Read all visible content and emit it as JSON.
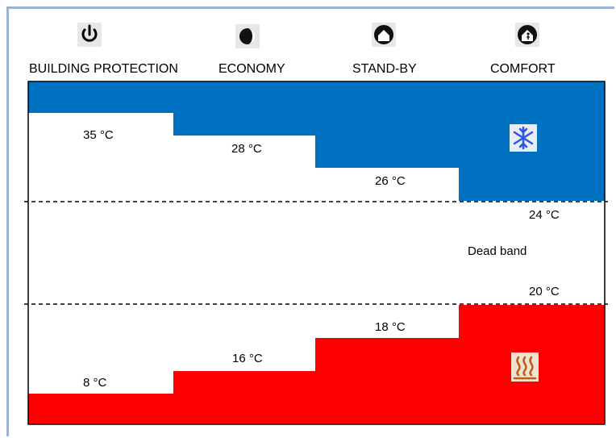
{
  "modes": [
    {
      "label": "BUILDING PROTECTION",
      "icon": "power-icon"
    },
    {
      "label": "ECONOMY",
      "icon": "moon-icon"
    },
    {
      "label": "STAND-BY",
      "icon": "house-icon"
    },
    {
      "label": "COMFORT",
      "icon": "house-person-icon"
    }
  ],
  "cooling_setpoints": [
    "35 °C",
    "28 °C",
    "26 °C"
  ],
  "heating_setpoints": [
    "8 °C",
    "16 °C",
    "18 °C"
  ],
  "dead_band": {
    "upper": "24 °C",
    "lower": "20 °C",
    "label": "Dead band"
  },
  "icons": {
    "cooling": "snowflake-icon",
    "heating": "heat-waves-icon"
  },
  "colors": {
    "cooling": "#0070c0",
    "heating": "#ff0000",
    "frame": "#9db3d6"
  }
}
